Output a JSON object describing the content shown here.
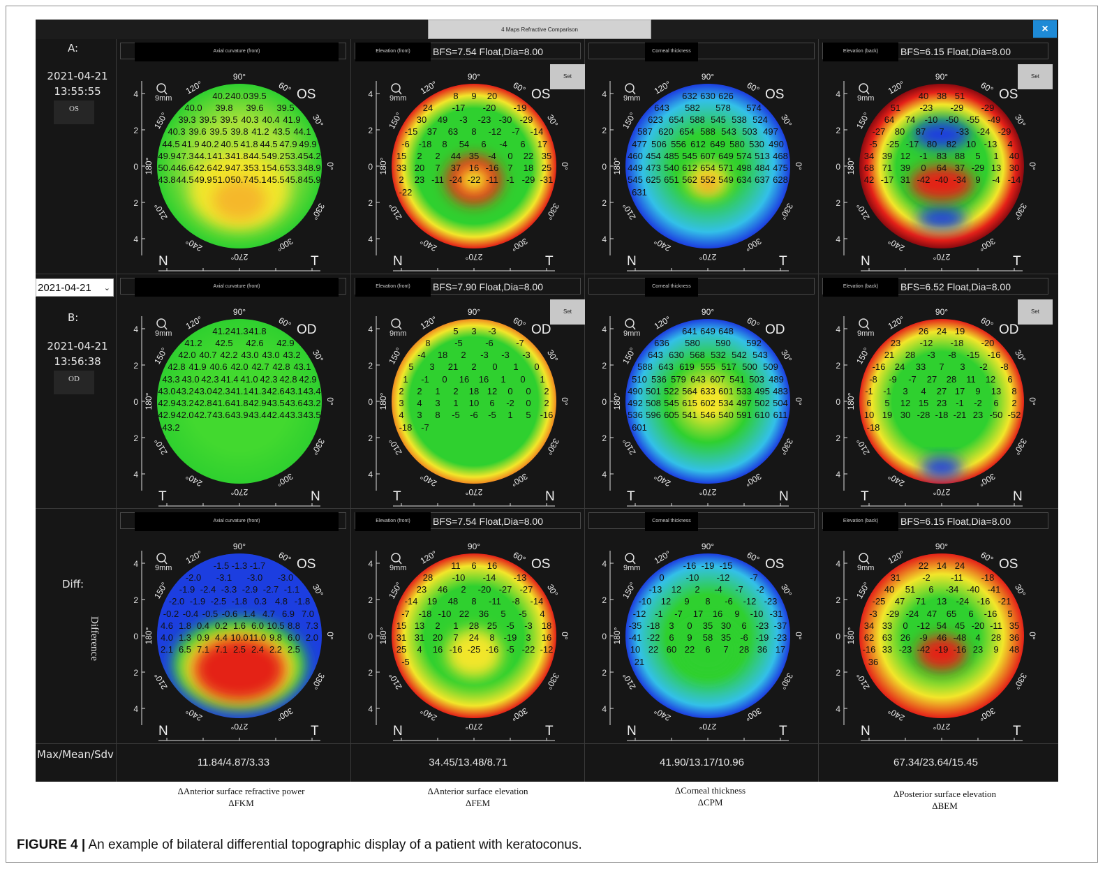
{
  "window": {
    "title": "4 Maps Refractive Comparison",
    "close_label": "×"
  },
  "rows": [
    {
      "id": "A",
      "label": "A:",
      "date": "2021-04-21",
      "time": "13:55:55",
      "eye": "OS"
    },
    {
      "id": "B",
      "label": "B:",
      "date": "2021-04-21",
      "time": "13:56:38",
      "eye": "OD"
    },
    {
      "id": "diff",
      "label": "Diff:",
      "rotated": "Difference"
    }
  ],
  "date_selector": {
    "value": "2021-04-21"
  },
  "map_ui": {
    "set_label": "Set",
    "size_label": "9mm",
    "top_angle": "90°",
    "bottom_angle": "270°"
  },
  "grid": [
    [
      {
        "title": "Axial curvature (front)",
        "bfs": "",
        "eye": "OS",
        "left": "N",
        "right": "T",
        "scheme": "axialA",
        "set": false,
        "numbers": [
          "40.2",
          "40.0",
          "39.5",
          "40.0",
          "39.8",
          "39.6",
          "39.5",
          "39.3",
          "39.5",
          "39.5",
          "40.3",
          "40.4",
          "41.9",
          "40.3",
          "39.6",
          "39.5",
          "39.8",
          "41.2",
          "43.5",
          "44.1",
          "44.5",
          "41.9",
          "40.2",
          "40.5",
          "41.8",
          "44.5",
          "47.9",
          "49.9",
          "49.9",
          "47.3",
          "44.1",
          "41.3",
          "41.8",
          "44.5",
          "49.2",
          "53.4",
          "54.2",
          "50.4",
          "46.6",
          "42.6",
          "42.9",
          "47.3",
          "53.1",
          "54.6",
          "53.3",
          "48.9",
          "43.8",
          "44.5",
          "49.9",
          "51.0",
          "50.7",
          "45.1",
          "45.5",
          "45.8",
          "45.9"
        ]
      },
      {
        "title": "Elevation (front)",
        "bfs": "BFS=7.54 Float,Dia=8.00",
        "eye": "OS",
        "left": "N",
        "right": "T",
        "scheme": "elevA",
        "set": true,
        "numbers": [
          "8",
          "9",
          "20",
          "24",
          "-17",
          "-20",
          "-19",
          "30",
          "49",
          "-3",
          "-23",
          "-30",
          "-29",
          "-15",
          "37",
          "63",
          "8",
          "-12",
          "-7",
          "-14",
          "-6",
          "-18",
          "8",
          "54",
          "6",
          "-4",
          "6",
          "17",
          "15",
          "2",
          "2",
          "44",
          "35",
          "-4",
          "0",
          "22",
          "35",
          "33",
          "20",
          "7",
          "37",
          "16",
          "-16",
          "7",
          "18",
          "25",
          "2",
          "23",
          "-11",
          "-24",
          "-22",
          "-11",
          "-1",
          "-29",
          "-31",
          "-22"
        ]
      },
      {
        "title": "Corneal thickness",
        "bfs": "",
        "eye": "OS",
        "left": "N",
        "right": "T",
        "scheme": "thickA",
        "set": false,
        "numbers": [
          "632",
          "630",
          "626",
          "643",
          "582",
          "578",
          "574",
          "623",
          "654",
          "588",
          "545",
          "538",
          "524",
          "587",
          "620",
          "654",
          "588",
          "543",
          "503",
          "497",
          "477",
          "506",
          "556",
          "612",
          "649",
          "580",
          "530",
          "490",
          "460",
          "454",
          "485",
          "545",
          "607",
          "649",
          "574",
          "513",
          "468",
          "449",
          "473",
          "540",
          "612",
          "654",
          "571",
          "498",
          "484",
          "475",
          "545",
          "625",
          "651",
          "562",
          "552",
          "549",
          "634",
          "637",
          "628",
          "631"
        ]
      },
      {
        "title": "Elevation (back)",
        "bfs": "BFS=6.15 Float,Dia=8.00",
        "eye": "OS",
        "left": "N",
        "right": "T",
        "scheme": "backA",
        "set": true,
        "numbers": [
          "40",
          "38",
          "51",
          "51",
          "-23",
          "-29",
          "-29",
          "64",
          "74",
          "-10",
          "-50",
          "-55",
          "-49",
          "-27",
          "80",
          "87",
          "7",
          "-33",
          "-24",
          "-29",
          "-5",
          "-25",
          "-17",
          "80",
          "82",
          "10",
          "-13",
          "4",
          "34",
          "39",
          "12",
          "-1",
          "83",
          "88",
          "5",
          "1",
          "40",
          "68",
          "71",
          "39",
          "0",
          "64",
          "37",
          "-29",
          "13",
          "30",
          "42",
          "-17",
          "31",
          "-42",
          "-40",
          "-34",
          "9",
          "-4",
          "-14"
        ]
      }
    ],
    [
      {
        "title": "Axial curvature (front)",
        "bfs": "",
        "eye": "OD",
        "left": "T",
        "right": "N",
        "scheme": "axialB",
        "set": false,
        "numbers": [
          "41.2",
          "41.3",
          "41.8",
          "41.2",
          "42.5",
          "42.6",
          "42.9",
          "42.0",
          "40.7",
          "42.2",
          "43.0",
          "43.0",
          "43.2",
          "42.8",
          "41.9",
          "40.6",
          "42.0",
          "42.7",
          "42.8",
          "43.1",
          "43.3",
          "43.0",
          "42.3",
          "41.4",
          "41.0",
          "42.3",
          "42.8",
          "42.9",
          "43.0",
          "43.2",
          "43.0",
          "42.3",
          "41.1",
          "41.3",
          "42.6",
          "43.1",
          "43.4",
          "42.9",
          "43.2",
          "42.8",
          "41.6",
          "41.8",
          "42.9",
          "43.5",
          "43.6",
          "43.2",
          "42.9",
          "42.0",
          "42.7",
          "43.6",
          "43.9",
          "43.4",
          "42.4",
          "43.3",
          "43.5",
          "43.2"
        ]
      },
      {
        "title": "Elevation (front)",
        "bfs": "BFS=7.90 Float,Dia=8.00",
        "eye": "OD",
        "left": "T",
        "right": "N",
        "scheme": "elevB",
        "set": true,
        "numbers": [
          "5",
          "3",
          "-3",
          "8",
          "-5",
          "-6",
          "-7",
          "-4",
          "18",
          "2",
          "-3",
          "-3",
          "-3",
          "5",
          "3",
          "21",
          "2",
          "0",
          "1",
          "0",
          "1",
          "-1",
          "0",
          "16",
          "16",
          "1",
          "0",
          "1",
          "2",
          "2",
          "1",
          "2",
          "18",
          "12",
          "0",
          "0",
          "2",
          "3",
          "4",
          "3",
          "1",
          "10",
          "6",
          "-2",
          "0",
          "2",
          "4",
          "3",
          "8",
          "-5",
          "-6",
          "-5",
          "1",
          "5",
          "-16",
          "-18",
          "-7"
        ]
      },
      {
        "title": "Corneal thickness",
        "bfs": "",
        "eye": "OD",
        "left": "T",
        "right": "N",
        "scheme": "thickB",
        "set": false,
        "numbers": [
          "641",
          "649",
          "648",
          "636",
          "580",
          "590",
          "592",
          "643",
          "630",
          "568",
          "532",
          "542",
          "543",
          "588",
          "643",
          "619",
          "555",
          "517",
          "500",
          "509",
          "510",
          "536",
          "579",
          "643",
          "607",
          "541",
          "503",
          "489",
          "490",
          "501",
          "522",
          "564",
          "633",
          "601",
          "533",
          "495",
          "483",
          "492",
          "508",
          "545",
          "615",
          "602",
          "534",
          "497",
          "502",
          "504",
          "536",
          "596",
          "605",
          "541",
          "546",
          "540",
          "591",
          "610",
          "611",
          "601"
        ]
      },
      {
        "title": "Elevation (back)",
        "bfs": "BFS=6.52 Float,Dia=8.00",
        "eye": "OD",
        "left": "T",
        "right": "N",
        "scheme": "backB",
        "set": true,
        "numbers": [
          "26",
          "24",
          "19",
          "23",
          "-12",
          "-18",
          "-20",
          "21",
          "28",
          "-3",
          "-8",
          "-15",
          "-16",
          "-16",
          "24",
          "33",
          "7",
          "3",
          "-2",
          "-8",
          "-8",
          "-9",
          "-7",
          "27",
          "28",
          "11",
          "12",
          "6",
          "-1",
          "-1",
          "3",
          "4",
          "27",
          "17",
          "9",
          "13",
          "8",
          "6",
          "5",
          "12",
          "15",
          "23",
          "-1",
          "-2",
          "6",
          "2",
          "10",
          "19",
          "30",
          "-28",
          "-18",
          "-21",
          "23",
          "-50",
          "-52",
          "-18"
        ]
      }
    ],
    [
      {
        "title": "Axial curvature (front)",
        "bfs": "",
        "eye": "OS",
        "left": "N",
        "right": "T",
        "scheme": "axialD",
        "set": false,
        "numbers": [
          "-1.5",
          "-1.3",
          "-1.7",
          "-2.0",
          "-3.1",
          "-3.0",
          "-3.0",
          "-1.9",
          "-2.4",
          "-3.3",
          "-2.9",
          "-2.7",
          "-1.1",
          "-2.0",
          "-1.9",
          "-2.5",
          "-1.8",
          "0.3",
          "4.8",
          "-1.8",
          "-0.2",
          "-0.4",
          "-0.5",
          "-0.6",
          "1.4",
          "4.7",
          "6.9",
          "7.0",
          "4.6",
          "1.8",
          "0.4",
          "0.2",
          "1.6",
          "6.0",
          "10.5",
          "8.8",
          "7.3",
          "4.0",
          "1.3",
          "0.9",
          "4.4",
          "10.0",
          "11.0",
          "9.8",
          "6.0",
          "2.0",
          "2.1",
          "6.5",
          "7.1",
          "7.1",
          "2.5",
          "2.4",
          "2.2",
          "2.5"
        ]
      },
      {
        "title": "Elevation (front)",
        "bfs": "BFS=7.54 Float,Dia=8.00",
        "eye": "OS",
        "left": "N",
        "right": "T",
        "scheme": "elevD",
        "set": false,
        "numbers": [
          "11",
          "6",
          "16",
          "28",
          "-10",
          "-14",
          "-13",
          "23",
          "46",
          "2",
          "-20",
          "-27",
          "-27",
          "-14",
          "19",
          "48",
          "8",
          "-11",
          "-8",
          "-14",
          "-7",
          "-18",
          "-10",
          "22",
          "36",
          "5",
          "-5",
          "4",
          "15",
          "13",
          "2",
          "1",
          "28",
          "25",
          "-5",
          "-3",
          "18",
          "31",
          "31",
          "20",
          "7",
          "24",
          "8",
          "-19",
          "3",
          "16",
          "25",
          "4",
          "16",
          "-16",
          "-25",
          "-16",
          "-5",
          "-22",
          "-12",
          "-5"
        ]
      },
      {
        "title": "Corneal thickness",
        "bfs": "",
        "eye": "OS",
        "left": "N",
        "right": "T",
        "scheme": "thickD",
        "set": false,
        "numbers": [
          "-16",
          "-19",
          "-15",
          "0",
          "-10",
          "-12",
          "-7",
          "-13",
          "12",
          "2",
          "-4",
          "-7",
          "-2",
          "-10",
          "12",
          "9",
          "8",
          "-6",
          "-12",
          "-23",
          "-12",
          "-1",
          "-7",
          "17",
          "16",
          "9",
          "-10",
          "-31",
          "-35",
          "-18",
          "3",
          "0",
          "35",
          "30",
          "6",
          "-23",
          "-37",
          "-41",
          "-22",
          "6",
          "9",
          "58",
          "35",
          "-6",
          "-19",
          "-23",
          "10",
          "22",
          "60",
          "22",
          "6",
          "7",
          "28",
          "36",
          "17",
          "21"
        ]
      },
      {
        "title": "Elevation (back)",
        "bfs": "BFS=6.15 Float,Dia=8.00",
        "eye": "OS",
        "left": "N",
        "right": "T",
        "scheme": "backD",
        "set": false,
        "numbers": [
          "22",
          "14",
          "24",
          "31",
          "-2",
          "-11",
          "-18",
          "40",
          "51",
          "6",
          "-34",
          "-40",
          "-41",
          "-25",
          "47",
          "71",
          "13",
          "-24",
          "-16",
          "-21",
          "-3",
          "-29",
          "-24",
          "47",
          "65",
          "6",
          "-16",
          "5",
          "34",
          "33",
          "0",
          "-12",
          "54",
          "45",
          "-20",
          "-11",
          "35",
          "62",
          "63",
          "26",
          "-9",
          "46",
          "-48",
          "4",
          "28",
          "36",
          "-16",
          "33",
          "-23",
          "-42",
          "-19",
          "-16",
          "23",
          "9",
          "48",
          "36"
        ]
      }
    ]
  ],
  "axis_ticks": [
    "4",
    "2",
    "0",
    "2",
    "4"
  ],
  "angle_labels": [
    "120°",
    "60°",
    "150°",
    "30°",
    "180°",
    "0°",
    "210°",
    "330°",
    "240°",
    "300°"
  ],
  "stats": {
    "label": "Max/Mean/Sdv",
    "values": [
      "11.84/4.87/3.33",
      "34.45/13.48/8.71",
      "41.90/13.17/10.96",
      "67.34/23.64/15.45"
    ]
  },
  "captions": [
    {
      "line1": "ΔAnterior surface refractive power",
      "line2": "ΔFKM"
    },
    {
      "line1": "ΔAnterior surface elevation",
      "line2": "ΔFEM"
    },
    {
      "line1": "ΔCorneal thickness",
      "line2": "ΔCPM"
    },
    {
      "line1": "ΔPosterior surface elevation",
      "line2": "ΔBEM"
    }
  ],
  "figure_caption": {
    "label": "FIGURE 4 |",
    "text": " An example of bilateral differential topographic display of a patient with keratoconus."
  },
  "colors": {
    "background": "#161616",
    "accent": "#1e8ad6",
    "green": "#2fd02f",
    "yellow": "#f2e62a",
    "red": "#e42018",
    "blue": "#1c3ee0",
    "cyan": "#33c0e8"
  }
}
